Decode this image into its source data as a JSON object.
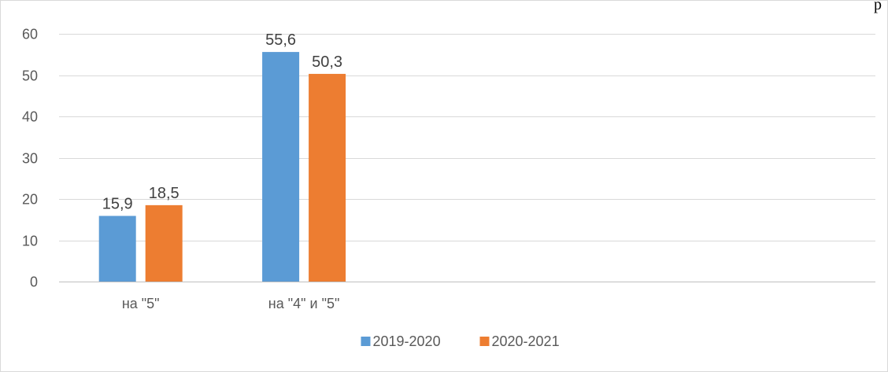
{
  "corner_text": "р",
  "chart_data": {
    "type": "bar",
    "title": "",
    "xlabel": "",
    "ylabel": "",
    "categories": [
      "на \"5\"",
      "на \"4\" и \"5\""
    ],
    "series": [
      {
        "name": "2019-2020",
        "values": [
          15.9,
          55.6
        ],
        "labels": [
          "15,9",
          "55,6"
        ],
        "color": "#5b9bd5"
      },
      {
        "name": "2020-2021",
        "values": [
          18.5,
          50.3
        ],
        "labels": [
          "18,5",
          "50,3"
        ],
        "color": "#ed7d31"
      }
    ],
    "ylim": [
      0,
      60
    ],
    "yticks": [
      0,
      10,
      20,
      30,
      40,
      50,
      60
    ],
    "ytick_labels": [
      "0",
      "10",
      "20",
      "30",
      "40",
      "50",
      "60"
    ],
    "grid": true,
    "legend_position": "bottom",
    "num_category_slots": 5
  }
}
